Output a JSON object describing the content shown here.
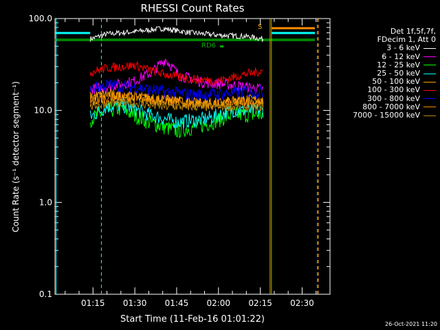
{
  "chart_data": {
    "type": "line",
    "title": "RHESSI Count Rates",
    "xlabel": "Start Time (11-Feb-16 01:01:22)",
    "ylabel": "Count Rate (s⁻¹ detector segment⁻¹)",
    "yscale": "log",
    "ylim": [
      0.1,
      100.0
    ],
    "yticks": [
      "0.1",
      "1.0",
      "10.0",
      "100.0"
    ],
    "xlim": [
      "01:01:22",
      "02:40:00"
    ],
    "xticks": [
      "01:15",
      "01:30",
      "01:45",
      "02:00",
      "02:15",
      "02:30"
    ],
    "legend_position": "top-right outside plot",
    "legend_header": [
      "Det 1f,5f,7f,",
      "FDecim 1, Att 0"
    ],
    "series": [
      {
        "name": "3 - 6 keV",
        "color": "#ffffff",
        "x": [
          "01:14",
          "01:20",
          "01:30",
          "01:40",
          "01:50",
          "02:00",
          "02:10",
          "02:16"
        ],
        "values": [
          60,
          68,
          72,
          78,
          70,
          66,
          64,
          60
        ]
      },
      {
        "name": "6 - 12 keV",
        "color": "#ff00ff",
        "x": [
          "01:14",
          "01:20",
          "01:30",
          "01:36",
          "01:41",
          "01:46",
          "01:55",
          "02:05",
          "02:16"
        ],
        "values": [
          17,
          18,
          21,
          26,
          36,
          24,
          20,
          19,
          17
        ]
      },
      {
        "name": "12 - 25 keV",
        "color": "#00ff00",
        "x": [
          "01:14",
          "01:20",
          "01:25",
          "01:35",
          "01:45",
          "01:55",
          "02:05",
          "02:16"
        ],
        "values": [
          8,
          10,
          10.5,
          7.5,
          6,
          7,
          9,
          9
        ]
      },
      {
        "name": "25 - 50 keV",
        "color": "#00ffff",
        "x": [
          "01:14",
          "01:20",
          "01:25",
          "01:35",
          "01:45",
          "01:55",
          "02:05",
          "02:16"
        ],
        "values": [
          8.5,
          11,
          11.5,
          9,
          7.5,
          8,
          10,
          10
        ]
      },
      {
        "name": "50 - 100 keV",
        "color": "#ffa500",
        "x": [
          "01:14",
          "01:20",
          "01:30",
          "01:40",
          "01:50",
          "02:00",
          "02:10",
          "02:16"
        ],
        "values": [
          14,
          15,
          14,
          13,
          12,
          12,
          13,
          13
        ]
      },
      {
        "name": "100 - 300 keV",
        "color": "#ff0000",
        "x": [
          "01:14",
          "01:20",
          "01:30",
          "01:40",
          "01:50",
          "02:00",
          "02:10",
          "02:16"
        ],
        "values": [
          26,
          29,
          31,
          25,
          22,
          21,
          25,
          27
        ]
      },
      {
        "name": "300 - 800 keV",
        "color": "#0000ff",
        "x": [
          "01:14",
          "01:20",
          "01:30",
          "01:40",
          "01:50",
          "02:00",
          "02:10",
          "02:16"
        ],
        "values": [
          17,
          19,
          18,
          16,
          15,
          15,
          16,
          16
        ]
      },
      {
        "name": "800 - 7000 keV",
        "color": "#ff8c00",
        "x": [
          "01:14",
          "01:20",
          "01:30",
          "01:40",
          "01:50",
          "02:00",
          "02:10",
          "02:16"
        ],
        "values": [
          12,
          14,
          14,
          13,
          12,
          12,
          13,
          12
        ]
      },
      {
        "name": "7000 - 15000 keV",
        "color": "#b8860b",
        "x": [
          "01:14",
          "01:20",
          "01:30",
          "01:40",
          "01:50",
          "02:00",
          "02:10",
          "02:16"
        ],
        "values": [
          11,
          12,
          12,
          11,
          11,
          11,
          11,
          11
        ]
      }
    ],
    "annotations": [
      {
        "label": "RD6",
        "color": "#00aa00"
      },
      {
        "label": "S",
        "color": "#ffa500"
      }
    ],
    "flags_colors": {
      "cyan": "#00ffff",
      "green": "#008000",
      "orange": "#ff8c00"
    },
    "footer": "26-Oct-2021 11:20"
  }
}
